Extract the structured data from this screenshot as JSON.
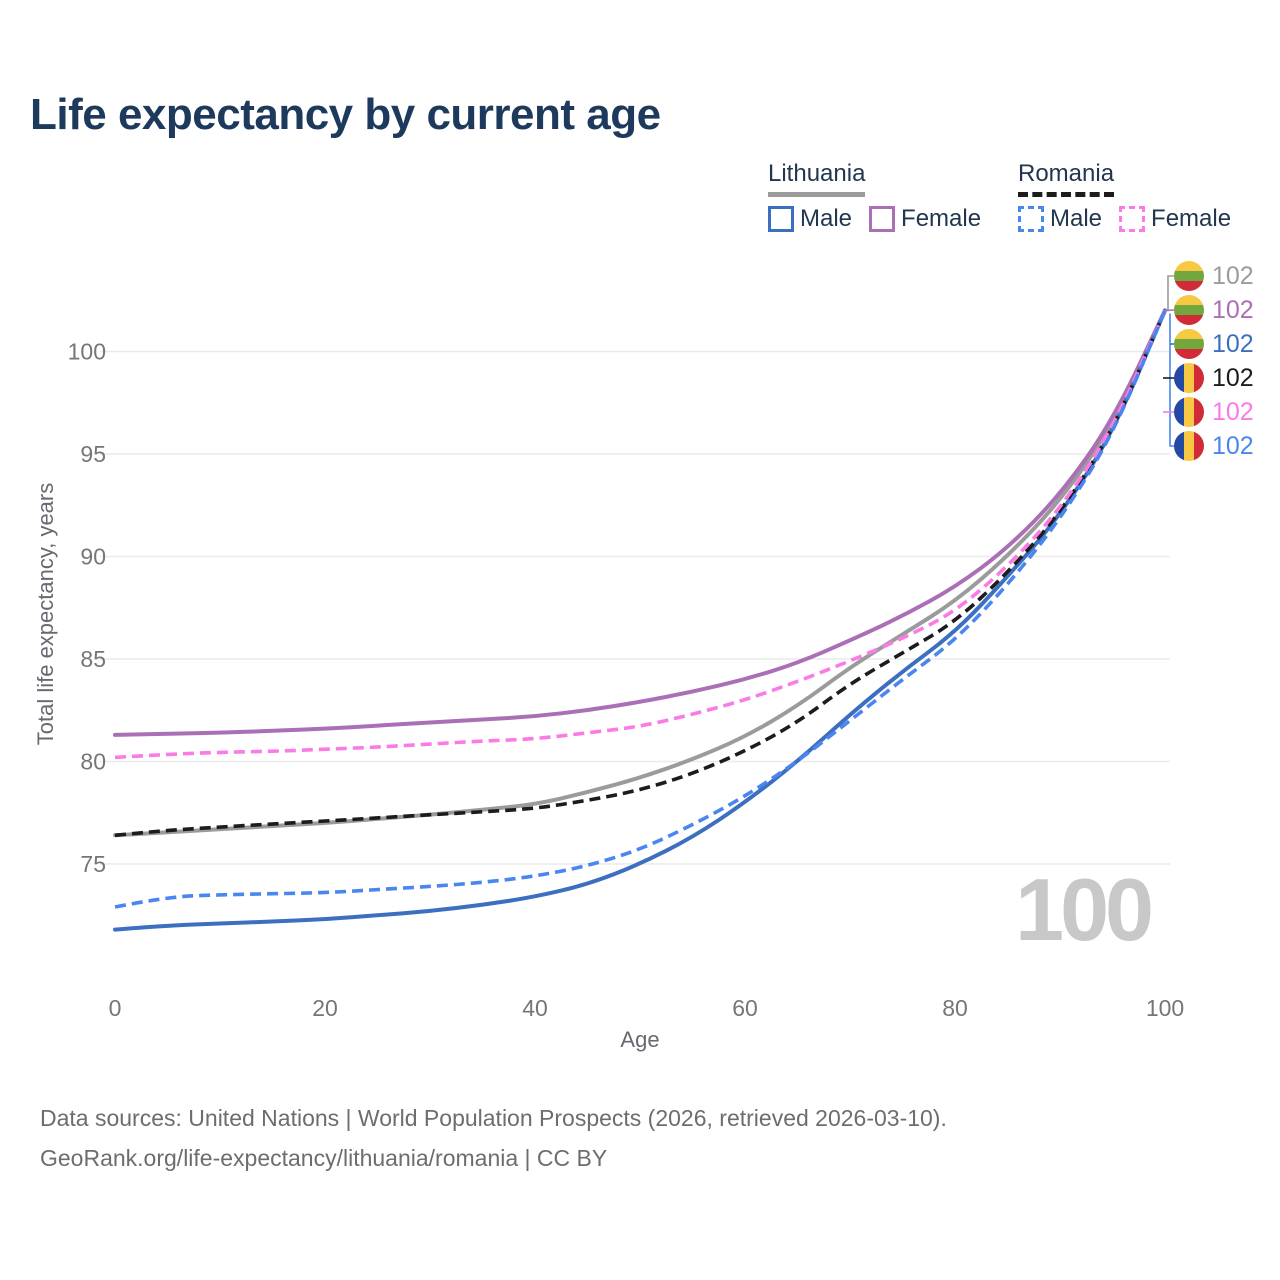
{
  "title": "Life expectancy by current age",
  "legend": {
    "groups": [
      {
        "country": "Lithuania",
        "line_style": "solid",
        "line_color": "#9b9b9b",
        "items": [
          {
            "label": "Male",
            "color": "#3d6fc0",
            "dashed": false
          },
          {
            "label": "Female",
            "color": "#ab6fb5",
            "dashed": false
          }
        ]
      },
      {
        "country": "Romania",
        "line_style": "dashed",
        "line_color": "#1c1c1c",
        "items": [
          {
            "label": "Male",
            "color": "#4a86ef",
            "dashed": true
          },
          {
            "label": "Female",
            "color": "#fa7ae6",
            "dashed": true
          }
        ]
      }
    ]
  },
  "y_axis": {
    "label": "Total life expectancy, years",
    "ticks": [
      75,
      80,
      85,
      90,
      95,
      100
    ]
  },
  "x_axis": {
    "label": "Age",
    "ticks": [
      0,
      20,
      40,
      60,
      80,
      100
    ]
  },
  "watermark_age": "100",
  "end_labels": [
    {
      "series": "Lithuania",
      "flag": "lithuania",
      "value": "102",
      "color": "#9b9b9b"
    },
    {
      "series": "Lithuania Female",
      "flag": "lithuania",
      "value": "102",
      "color": "#ab6fb5"
    },
    {
      "series": "Lithuania Male",
      "flag": "lithuania",
      "value": "102",
      "color": "#3d6fc0"
    },
    {
      "series": "Romania",
      "flag": "romania",
      "value": "102",
      "color": "#1c1c1c"
    },
    {
      "series": "Romania Female",
      "flag": "romania",
      "value": "102",
      "color": "#fa7ae6"
    },
    {
      "series": "Romania Male",
      "flag": "romania",
      "value": "102",
      "color": "#4a86ef"
    }
  ],
  "flag_colors": {
    "lithuania": {
      "yellow": "#f7c843",
      "green": "#71a73e",
      "red": "#d02b37"
    },
    "romania": {
      "blue": "#2349a3",
      "yellow": "#f7c843",
      "red": "#d02b37"
    }
  },
  "footer": {
    "line1": "Data sources: United Nations | World Population Prospects (2026, retrieved 2026-03-10).",
    "line2": "GeoRank.org/life-expectancy/lithuania/romania | CC BY"
  },
  "chart_data": {
    "type": "line",
    "title": "Life expectancy by current age",
    "xlabel": "Age",
    "ylabel": "Total life expectancy, years",
    "xlim": [
      0,
      100
    ],
    "ylim": [
      70.5,
      102.5
    ],
    "grid": true,
    "legend_position": "top-right",
    "x": [
      0,
      5,
      10,
      15,
      20,
      25,
      30,
      35,
      40,
      45,
      50,
      55,
      60,
      65,
      70,
      75,
      80,
      85,
      90,
      95,
      100
    ],
    "series": [
      {
        "name": "Lithuania",
        "country": "Lithuania",
        "sex": "Both sexes",
        "color": "#9b9b9b",
        "style": "solid",
        "end_value": 102,
        "values": [
          76.4,
          76.55,
          76.7,
          76.85,
          77.0,
          77.2,
          77.4,
          77.65,
          77.9,
          78.5,
          79.2,
          80.1,
          81.2,
          82.7,
          84.6,
          86.2,
          87.8,
          90.0,
          92.7,
          96.4,
          102
        ]
      },
      {
        "name": "Lithuania Female",
        "country": "Lithuania",
        "sex": "Female",
        "color": "#ab6fb5",
        "style": "solid",
        "end_value": 102,
        "values": [
          81.3,
          81.35,
          81.4,
          81.5,
          81.6,
          81.75,
          81.9,
          82.05,
          82.2,
          82.5,
          82.9,
          83.4,
          84.0,
          84.8,
          85.9,
          87.1,
          88.5,
          90.4,
          93.0,
          96.6,
          102
        ]
      },
      {
        "name": "Lithuania Male",
        "country": "Lithuania",
        "sex": "Male",
        "color": "#3d6fc0",
        "style": "solid",
        "end_value": 102,
        "values": [
          71.8,
          72.0,
          72.1,
          72.2,
          72.3,
          72.5,
          72.7,
          73.0,
          73.4,
          74.0,
          75.0,
          76.3,
          78.0,
          80.0,
          82.3,
          84.4,
          86.3,
          89.0,
          92.0,
          96.0,
          102
        ]
      },
      {
        "name": "Romania",
        "country": "Romania",
        "sex": "Both sexes",
        "color": "#1c1c1c",
        "style": "dashed",
        "end_value": 102,
        "values": [
          76.4,
          76.65,
          76.8,
          76.95,
          77.1,
          77.25,
          77.4,
          77.55,
          77.7,
          78.1,
          78.6,
          79.4,
          80.5,
          81.9,
          83.8,
          85.3,
          86.8,
          89.2,
          92.1,
          96.1,
          102
        ]
      },
      {
        "name": "Romania Female",
        "country": "Romania",
        "sex": "Female",
        "color": "#fa7ae6",
        "style": "dashed",
        "end_value": 102,
        "values": [
          80.2,
          80.35,
          80.45,
          80.5,
          80.6,
          80.7,
          80.85,
          81.0,
          81.1,
          81.4,
          81.7,
          82.3,
          83.0,
          83.9,
          84.9,
          86.0,
          87.3,
          89.5,
          92.3,
          96.2,
          102
        ]
      },
      {
        "name": "Romania Male",
        "country": "Romania",
        "sex": "Male",
        "color": "#4a86ef",
        "style": "dashed",
        "end_value": 102,
        "values": [
          72.9,
          73.4,
          73.5,
          73.55,
          73.6,
          73.75,
          73.9,
          74.1,
          74.4,
          74.9,
          75.7,
          76.9,
          78.3,
          80.0,
          82.0,
          84.0,
          85.9,
          88.6,
          91.8,
          95.9,
          102
        ]
      }
    ]
  }
}
